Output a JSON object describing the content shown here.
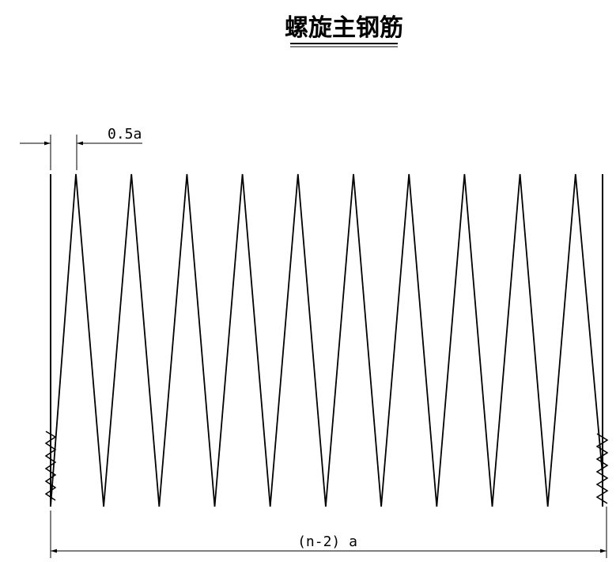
{
  "title": "螺旋主钢筋",
  "dimensions": {
    "pitch_label": "0.5a",
    "length_label": "(n-2) a"
  },
  "drawing": {
    "peak_count": 10,
    "valley_count": 10,
    "line_color": "#000000"
  }
}
